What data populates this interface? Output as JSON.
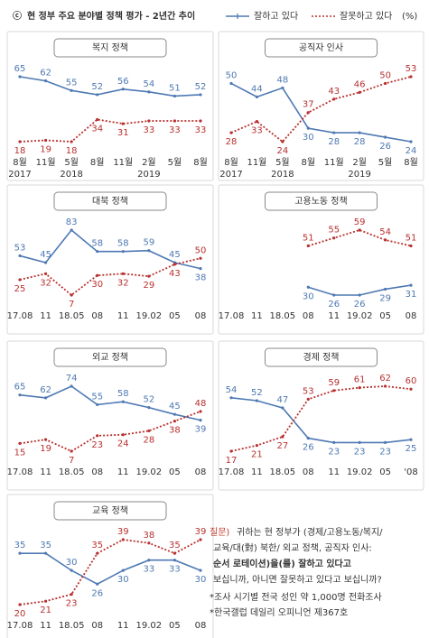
{
  "header": {
    "mark": "ⓒ",
    "title": "현 정부 주요 분야별 정책 평가 - 2년간 추이",
    "unit": "(%)",
    "legend": [
      {
        "name": "잘하고 있다",
        "color": "#4e79b3"
      },
      {
        "name": "잘못하고 있다",
        "color": "#b8312f"
      }
    ]
  },
  "chart_data": [
    {
      "type": "line",
      "title": "복지 정책",
      "categories": [
        "8월",
        "11월",
        "5월",
        "8월",
        "11월",
        "2월",
        "5월",
        "8월"
      ],
      "category_years": [
        "2017",
        null,
        "2018",
        null,
        null,
        "2019",
        null,
        null
      ],
      "series": [
        {
          "values": [
            65,
            62,
            55,
            52,
            56,
            54,
            51,
            52
          ]
        },
        {
          "values": [
            18,
            19,
            18,
            34,
            31,
            33,
            33,
            33
          ]
        }
      ]
    },
    {
      "type": "line",
      "title": "공직자 인사",
      "categories": [
        "8월",
        "11월",
        "5월",
        "8월",
        "11월",
        "2월",
        "5월",
        "8월"
      ],
      "category_years": [
        "2017",
        null,
        "2018",
        null,
        null,
        "2019",
        null,
        null
      ],
      "series": [
        {
          "values": [
            50,
            44,
            48,
            30,
            28,
            28,
            26,
            24
          ]
        },
        {
          "values": [
            28,
            33,
            24,
            37,
            43,
            46,
            50,
            53
          ]
        }
      ]
    },
    {
      "type": "line",
      "title": "대북 정책",
      "categories": [
        "17.08",
        "11",
        "18.05",
        "08",
        "11",
        "19.02",
        "05",
        "08"
      ],
      "series": [
        {
          "values": [
            53,
            45,
            83,
            58,
            58,
            59,
            45,
            38
          ]
        },
        {
          "values": [
            25,
            32,
            7,
            30,
            32,
            29,
            43,
            50
          ]
        }
      ]
    },
    {
      "type": "line",
      "title": "고용노동 정책",
      "categories": [
        "17.08",
        "11",
        "18.05",
        "08",
        "11",
        "19.02",
        "05",
        "08"
      ],
      "series": [
        {
          "values": [
            null,
            null,
            null,
            30,
            26,
            26,
            29,
            31
          ]
        },
        {
          "values": [
            null,
            null,
            null,
            51,
            55,
            59,
            54,
            51
          ]
        }
      ]
    },
    {
      "type": "line",
      "title": "외교 정책",
      "categories": [
        "17.08",
        "11",
        "18.05",
        "08",
        "11",
        "19.02",
        "05",
        "08"
      ],
      "series": [
        {
          "values": [
            65,
            62,
            74,
            55,
            58,
            52,
            45,
            39
          ]
        },
        {
          "values": [
            15,
            19,
            7,
            23,
            24,
            28,
            38,
            48
          ]
        }
      ]
    },
    {
      "type": "line",
      "title": "경제 정책",
      "categories": [
        "17.08",
        "11",
        "18.05",
        "08",
        "11",
        "19.02",
        "05",
        "'08"
      ],
      "series": [
        {
          "values": [
            54,
            52,
            47,
            26,
            23,
            23,
            23,
            25
          ]
        },
        {
          "values": [
            17,
            21,
            27,
            53,
            59,
            61,
            62,
            60
          ]
        }
      ]
    },
    {
      "type": "line",
      "title": "교육 정책",
      "categories": [
        "17.08",
        "11",
        "18.05",
        "08",
        "11",
        "19.02",
        "05",
        "08"
      ],
      "series": [
        {
          "values": [
            35,
            35,
            30,
            26,
            30,
            33,
            33,
            30
          ]
        },
        {
          "values": [
            20,
            21,
            23,
            35,
            39,
            38,
            35,
            39
          ]
        }
      ]
    }
  ],
  "note": {
    "question_label": "질문)",
    "question": [
      "귀하는 현 정부가 (경제/고용노동/복지/",
      "교육/대(對) 북한/ 외교 정책, 공직자 인사:",
      "순서 로테이션)을(를) 잘하고 있다고",
      "보십니까, 아니면 잘못하고 있다고 보십니까?"
    ],
    "footnotes": [
      "*조사 시기별 전국 성인 약 1,000명 전화조사",
      "*한국갤럽 데일리 오피니언 제367호"
    ]
  }
}
